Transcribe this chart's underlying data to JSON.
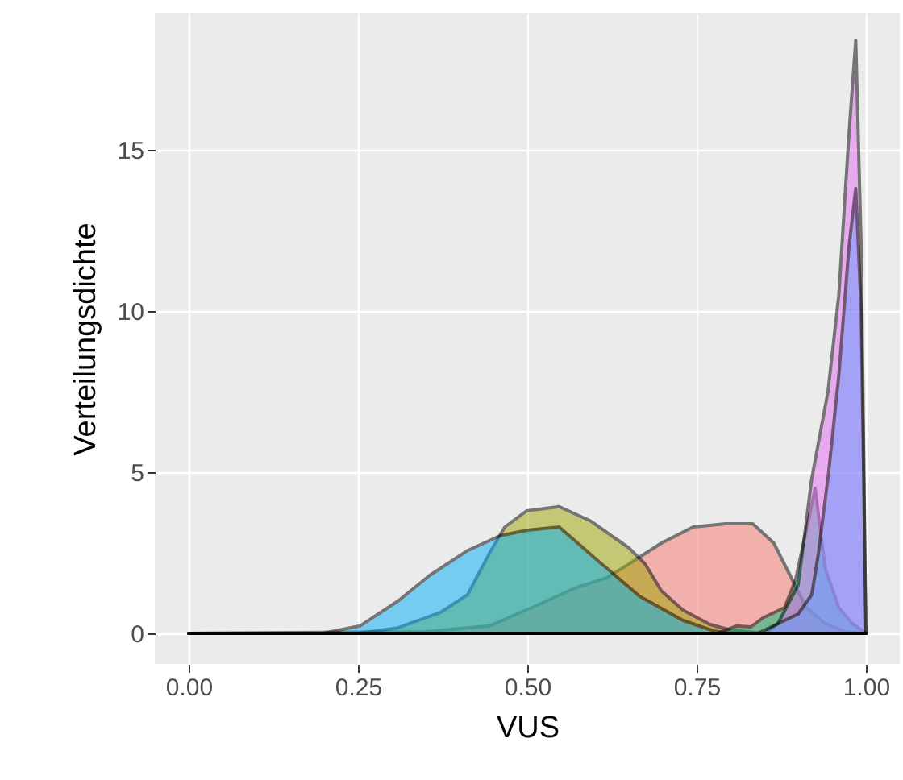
{
  "chart_data": {
    "type": "area",
    "xlabel": "VUS",
    "ylabel": "Verteilungsdichte",
    "xlim": [
      -0.05,
      1.05
    ],
    "ylim": [
      -0.95,
      19.25
    ],
    "xticks": [
      {
        "value": 0,
        "label": "0.00"
      },
      {
        "value": 0.25,
        "label": "0.25"
      },
      {
        "value": 0.5,
        "label": "0.50"
      },
      {
        "value": 0.75,
        "label": "0.75"
      },
      {
        "value": 1,
        "label": "1.00"
      }
    ],
    "yticks": [
      0,
      5,
      10,
      15
    ],
    "grid": true,
    "series": [
      {
        "color": "#F8766D",
        "x": [
          0,
          0.35,
          0.444,
          0.507,
          0.57,
          0.618,
          0.65,
          0.698,
          0.745,
          0.793,
          0.833,
          0.864,
          0.888,
          0.912,
          0.94,
          0.97,
          1.0
        ],
        "values": [
          0,
          0.05,
          0.23,
          0.8,
          1.4,
          1.73,
          2.15,
          2.8,
          3.3,
          3.4,
          3.4,
          2.8,
          1.8,
          0.8,
          0.3,
          0.05,
          0
        ]
      },
      {
        "color": "#A3A500",
        "x": [
          0,
          0.25,
          0.309,
          0.372,
          0.412,
          0.444,
          0.467,
          0.499,
          0.547,
          0.594,
          0.65,
          0.674,
          0.698,
          0.73,
          0.769,
          0.8,
          0.85,
          1.0
        ],
        "values": [
          0,
          0,
          0.17,
          0.65,
          1.2,
          2.48,
          3.3,
          3.8,
          3.93,
          3.48,
          2.65,
          2.15,
          1.32,
          0.72,
          0.28,
          0.1,
          0,
          0
        ]
      },
      {
        "color": "#00BF7D",
        "x": [
          0,
          0.78,
          0.809,
          0.83,
          0.848,
          0.88,
          0.896,
          0.91,
          0.925,
          0.94,
          0.96,
          0.98,
          1.0
        ],
        "values": [
          0,
          0,
          0.23,
          0.2,
          0.48,
          0.8,
          1.65,
          3.0,
          4.5,
          2.0,
          0.8,
          0.3,
          0
        ]
      },
      {
        "color": "#00B0F6",
        "x": [
          0,
          0.198,
          0.253,
          0.309,
          0.356,
          0.412,
          0.46,
          0.5,
          0.547,
          0.61,
          0.666,
          0.73,
          0.776,
          0.8,
          1.0
        ],
        "values": [
          0,
          0,
          0.23,
          1.0,
          1.8,
          2.57,
          3.03,
          3.2,
          3.3,
          2.15,
          1.15,
          0.4,
          0.07,
          0,
          0
        ]
      },
      {
        "color": "#E76BF3",
        "x": [
          0,
          0.85,
          0.87,
          0.9,
          0.92,
          0.944,
          0.96,
          0.975,
          0.985,
          0.993,
          1.0
        ],
        "values": [
          0,
          0,
          0.3,
          1.5,
          4.8,
          7.5,
          10.5,
          15.5,
          18.4,
          12,
          0
        ]
      },
      {
        "color": "#619CFF",
        "x": [
          0,
          0.84,
          0.87,
          0.9,
          0.92,
          0.93,
          0.945,
          0.96,
          0.975,
          0.985,
          0.993,
          1.0
        ],
        "values": [
          0,
          0,
          0.3,
          0.6,
          1.2,
          2.5,
          5,
          8,
          12,
          13.8,
          10,
          0
        ]
      }
    ]
  }
}
